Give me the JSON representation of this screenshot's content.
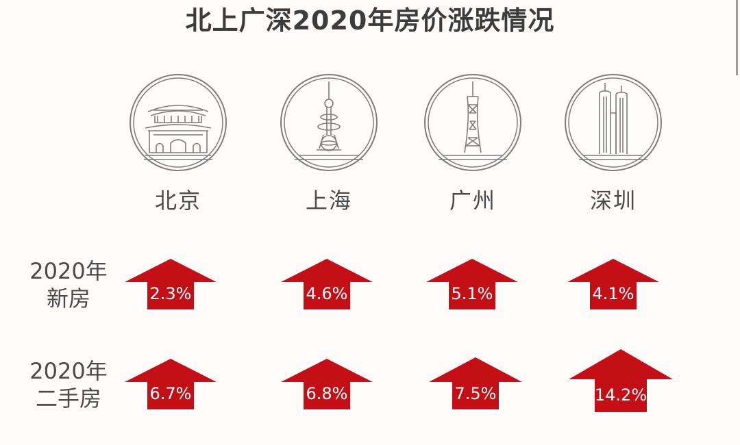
{
  "title": "北上广深2020年房价涨跌情况",
  "colors": {
    "arrow": "#c40f17",
    "icon_line": "#7d7d7d",
    "text": "#4a4a4a"
  },
  "cities": [
    {
      "name": "北京",
      "icon": "tiananmen-icon"
    },
    {
      "name": "上海",
      "icon": "oriental-pearl-tower-icon"
    },
    {
      "name": "广州",
      "icon": "canton-tower-icon"
    },
    {
      "name": "深圳",
      "icon": "twin-towers-icon"
    }
  ],
  "rows": [
    {
      "label_line1": "2020年",
      "label_line2": "新房"
    },
    {
      "label_line1": "2020年",
      "label_line2": "二手房"
    }
  ],
  "chart_data": {
    "type": "table",
    "title": "北上广深2020年房价涨跌情况",
    "categories": [
      "北京",
      "上海",
      "广州",
      "深圳"
    ],
    "series": [
      {
        "name": "2020年新房",
        "values": [
          2.3,
          4.6,
          5.1,
          4.1
        ],
        "labels": [
          "2.3%",
          "4.6%",
          "5.1%",
          "4.1%"
        ]
      },
      {
        "name": "2020年二手房",
        "values": [
          6.7,
          6.8,
          7.5,
          14.2
        ],
        "labels": [
          "6.7%",
          "6.8%",
          "7.5%",
          "14.2%"
        ]
      }
    ],
    "unit": "%"
  }
}
